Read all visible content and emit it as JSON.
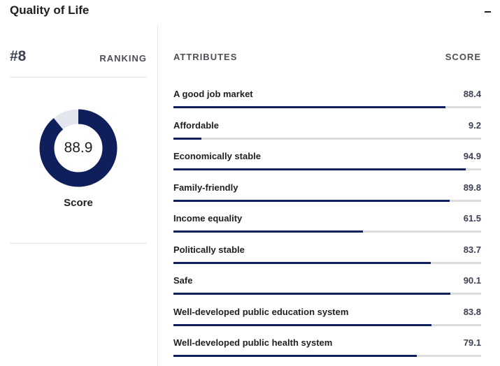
{
  "header": {
    "title": "Quality of Life",
    "collapse_icon": "minus-icon"
  },
  "ranking": {
    "rank": "#8",
    "label": "RANKING"
  },
  "overall": {
    "score": 88.9,
    "score_text": "88.9",
    "caption": "Score",
    "fill_color": "#0f1f5c",
    "track_color": "#e4e6ee"
  },
  "attributes": {
    "header_left": "ATTRIBUTES",
    "header_right": "SCORE",
    "bar_color": "#0f1f5c",
    "track_color": "#dcdcdc",
    "items": [
      {
        "label": "A good job market",
        "score": "88.4"
      },
      {
        "label": "Affordable",
        "score": "9.2"
      },
      {
        "label": "Economically stable",
        "score": "94.9"
      },
      {
        "label": "Family-friendly",
        "score": "89.8"
      },
      {
        "label": "Income equality",
        "score": "61.5"
      },
      {
        "label": "Politically stable",
        "score": "83.7"
      },
      {
        "label": "Safe",
        "score": "90.1"
      },
      {
        "label": "Well-developed public education system",
        "score": "83.8"
      },
      {
        "label": "Well-developed public health system",
        "score": "79.1"
      }
    ]
  }
}
